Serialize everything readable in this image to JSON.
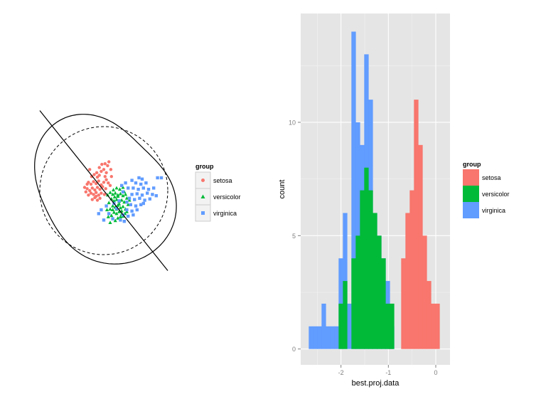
{
  "colors": {
    "setosa": "#F8766D",
    "versicolor": "#00BA38",
    "virginica": "#619CFF",
    "panel_bg": "#E5E5E5",
    "grid": "#FFFFFF",
    "axis_text": "#7F7F7F"
  },
  "chart_data": [
    {
      "type": "scatter",
      "title": "",
      "xlabel": "",
      "ylabel": "",
      "grid": false,
      "legend": {
        "title": "group",
        "position": "right",
        "entries": [
          {
            "name": "setosa",
            "shape": "circle"
          },
          {
            "name": "versicolor",
            "shape": "triangle"
          },
          {
            "name": "virginica",
            "shape": "square"
          }
        ]
      },
      "xlim": [
        -1.25,
        1.25
      ],
      "ylim": [
        -1.25,
        1.25
      ],
      "overlays": {
        "projection_line": {
          "x": [
            -1.0,
            1.0
          ],
          "y": [
            1.25,
            -1.25
          ]
        },
        "dashed_circle_radius": 1.0,
        "solid_contour": "projection density curve"
      },
      "series": [
        {
          "name": "setosa",
          "points": [
            [
              -0.22,
              0.33
            ],
            [
              -0.19,
              0.22
            ],
            [
              -0.15,
              0.25
            ],
            [
              -0.11,
              0.28
            ],
            [
              -0.07,
              0.24
            ],
            [
              -0.04,
              0.3
            ],
            [
              0.0,
              0.33
            ],
            [
              0.02,
              0.22
            ],
            [
              -0.24,
              0.13
            ],
            [
              -0.2,
              0.1
            ],
            [
              -0.16,
              0.14
            ],
            [
              -0.12,
              0.11
            ],
            [
              -0.08,
              0.15
            ],
            [
              -0.04,
              0.09
            ],
            [
              0.0,
              0.13
            ],
            [
              0.04,
              0.17
            ],
            [
              0.07,
              0.12
            ],
            [
              -0.26,
              0.03
            ],
            [
              -0.22,
              0.0
            ],
            [
              -0.18,
              0.04
            ],
            [
              -0.14,
              0.01
            ],
            [
              -0.1,
              0.05
            ],
            [
              -0.06,
              0.02
            ],
            [
              -0.02,
              0.06
            ],
            [
              0.03,
              0.03
            ],
            [
              -0.24,
              -0.07
            ],
            [
              -0.2,
              -0.04
            ],
            [
              -0.16,
              -0.06
            ],
            [
              -0.12,
              -0.03
            ],
            [
              -0.08,
              -0.07
            ],
            [
              -0.04,
              -0.04
            ],
            [
              0.01,
              -0.06
            ],
            [
              -0.18,
              -0.14
            ],
            [
              -0.14,
              -0.11
            ],
            [
              -0.1,
              -0.15
            ],
            [
              -0.06,
              -0.12
            ],
            [
              0.08,
              0.45
            ],
            [
              0.11,
              0.33
            ],
            [
              0.06,
              0.39
            ],
            [
              -0.03,
              0.41
            ],
            [
              0.12,
              0.22
            ],
            [
              0.1,
              0.08
            ],
            [
              -0.28,
              -0.02
            ],
            [
              -0.26,
              0.1
            ],
            [
              -0.3,
              0.05
            ],
            [
              -0.1,
              0.21
            ],
            [
              -0.12,
              -0.09
            ],
            [
              0.04,
              0.28
            ],
            [
              -0.07,
              0.36
            ],
            [
              0.02,
              0.42
            ]
          ]
        },
        {
          "name": "versicolor",
          "points": [
            [
              0.1,
              -0.03
            ],
            [
              0.14,
              -0.06
            ],
            [
              0.18,
              -0.04
            ],
            [
              0.22,
              -0.07
            ],
            [
              0.26,
              -0.05
            ],
            [
              0.3,
              -0.08
            ],
            [
              0.34,
              -0.06
            ],
            [
              0.12,
              -0.13
            ],
            [
              0.16,
              -0.16
            ],
            [
              0.2,
              -0.14
            ],
            [
              0.24,
              -0.17
            ],
            [
              0.28,
              -0.15
            ],
            [
              0.32,
              -0.18
            ],
            [
              0.14,
              -0.24
            ],
            [
              0.18,
              -0.26
            ],
            [
              0.22,
              -0.23
            ],
            [
              0.26,
              -0.27
            ],
            [
              0.3,
              -0.25
            ],
            [
              0.16,
              -0.34
            ],
            [
              0.2,
              -0.36
            ],
            [
              0.24,
              -0.33
            ],
            [
              0.28,
              -0.37
            ],
            [
              0.22,
              -0.43
            ],
            [
              0.18,
              -0.47
            ],
            [
              0.08,
              -0.19
            ],
            [
              0.06,
              -0.07
            ],
            [
              0.36,
              -0.12
            ],
            [
              0.38,
              -0.22
            ],
            [
              0.1,
              -0.29
            ],
            [
              0.34,
              -0.29
            ],
            [
              0.2,
              0.04
            ],
            [
              0.25,
              0.02
            ],
            [
              0.3,
              0.05
            ],
            [
              0.15,
              0.01
            ],
            [
              0.12,
              -0.39
            ],
            [
              0.26,
              -0.41
            ],
            [
              0.4,
              -0.15
            ],
            [
              0.05,
              -0.3
            ],
            [
              0.22,
              -0.09
            ],
            [
              0.28,
              -0.32
            ],
            [
              0.32,
              -0.02
            ],
            [
              0.17,
              -0.1
            ],
            [
              0.1,
              -0.5
            ],
            [
              0.36,
              -0.33
            ],
            [
              0.07,
              -0.41
            ],
            [
              0.3,
              -0.4
            ],
            [
              0.14,
              -0.3
            ],
            [
              0.24,
              -0.21
            ],
            [
              0.2,
              -0.29
            ],
            [
              0.33,
              -0.36
            ]
          ]
        },
        {
          "name": "virginica",
          "points": [
            [
              0.55,
              0.2
            ],
            [
              0.6,
              0.18
            ],
            [
              0.5,
              0.12
            ],
            [
              0.58,
              0.1
            ],
            [
              0.66,
              0.12
            ],
            [
              0.46,
              0.04
            ],
            [
              0.54,
              0.02
            ],
            [
              0.62,
              0.04
            ],
            [
              0.7,
              0.02
            ],
            [
              0.44,
              -0.06
            ],
            [
              0.52,
              -0.05
            ],
            [
              0.6,
              -0.07
            ],
            [
              0.68,
              -0.04
            ],
            [
              0.76,
              -0.06
            ],
            [
              0.4,
              -0.12
            ],
            [
              0.48,
              -0.14
            ],
            [
              0.56,
              -0.12
            ],
            [
              0.64,
              -0.15
            ],
            [
              0.72,
              -0.13
            ],
            [
              0.42,
              -0.22
            ],
            [
              0.5,
              -0.24
            ],
            [
              0.58,
              -0.22
            ],
            [
              0.36,
              -0.3
            ],
            [
              0.44,
              -0.32
            ],
            [
              0.52,
              -0.3
            ],
            [
              0.3,
              -0.38
            ],
            [
              0.38,
              -0.4
            ],
            [
              0.46,
              -0.38
            ],
            [
              0.32,
              -0.48
            ],
            [
              0.26,
              -0.46
            ],
            [
              0.84,
              0.2
            ],
            [
              0.9,
              0.2
            ],
            [
              0.78,
              0.04
            ],
            [
              0.82,
              -0.08
            ],
            [
              0.34,
              0.12
            ],
            [
              0.38,
              0.04
            ],
            [
              0.3,
              -0.02
            ],
            [
              0.24,
              -0.16
            ],
            [
              0.2,
              -0.28
            ],
            [
              0.14,
              -0.44
            ],
            [
              -0.04,
              -0.3
            ],
            [
              -0.08,
              -0.36
            ],
            [
              0.04,
              -0.24
            ],
            [
              0.08,
              -0.36
            ],
            [
              0.0,
              -0.46
            ],
            [
              0.62,
              -0.2
            ],
            [
              0.44,
              0.16
            ],
            [
              0.36,
              -0.18
            ],
            [
              0.28,
              0.08
            ],
            [
              0.16,
              -0.2
            ]
          ]
        }
      ]
    },
    {
      "type": "bar",
      "subtype": "histogram",
      "stacked": false,
      "title": "",
      "xlabel": "best.proj.data",
      "ylabel": "count",
      "xlim": [
        -2.85,
        0.3
      ],
      "ylim": [
        -0.7,
        14.8
      ],
      "xticks": [
        -2,
        -1,
        0
      ],
      "yticks": [
        0,
        5,
        10
      ],
      "grid": true,
      "bin_width": 0.09,
      "legend": {
        "title": "group",
        "position": "right",
        "entries": [
          "setosa",
          "versicolor",
          "virginica"
        ]
      },
      "series": [
        {
          "name": "setosa",
          "bins": [
            [
              -1.0,
              1
            ],
            [
              -0.73,
              4
            ],
            [
              -0.64,
              6
            ],
            [
              -0.55,
              7
            ],
            [
              -0.46,
              11
            ],
            [
              -0.37,
              9
            ],
            [
              -0.28,
              5
            ],
            [
              -0.19,
              3
            ],
            [
              -0.1,
              2
            ],
            [
              -0.01,
              2
            ]
          ]
        },
        {
          "name": "virginica",
          "bins": [
            [
              -2.68,
              1
            ],
            [
              -2.59,
              1
            ],
            [
              -2.5,
              1
            ],
            [
              -2.41,
              2
            ],
            [
              -2.32,
              1
            ],
            [
              -2.23,
              1
            ],
            [
              -2.14,
              1
            ],
            [
              -2.05,
              4
            ],
            [
              -1.96,
              6
            ],
            [
              -1.87,
              2
            ],
            [
              -1.78,
              14
            ],
            [
              -1.69,
              10
            ],
            [
              -1.6,
              9
            ],
            [
              -1.51,
              13
            ],
            [
              -1.42,
              11
            ],
            [
              -1.33,
              6
            ],
            [
              -1.24,
              5
            ],
            [
              -1.15,
              4
            ],
            [
              -1.06,
              3
            ],
            [
              -0.97,
              1
            ]
          ]
        },
        {
          "name": "versicolor",
          "bins": [
            [
              -2.05,
              2
            ],
            [
              -1.96,
              3
            ],
            [
              -1.78,
              4
            ],
            [
              -1.69,
              5
            ],
            [
              -1.6,
              7
            ],
            [
              -1.51,
              8
            ],
            [
              -1.42,
              7
            ],
            [
              -1.33,
              6
            ],
            [
              -1.24,
              5
            ],
            [
              -1.15,
              4
            ],
            [
              -1.06,
              2
            ],
            [
              -0.97,
              2
            ]
          ]
        }
      ]
    }
  ]
}
